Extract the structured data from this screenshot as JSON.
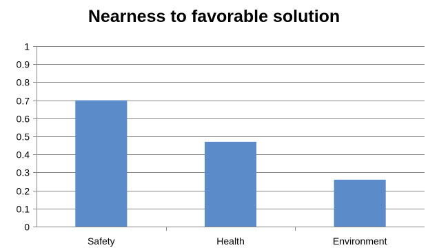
{
  "chart_data": {
    "type": "bar",
    "title": "Nearness to favorable solution",
    "categories": [
      "Safety",
      "Health",
      "Environment"
    ],
    "values": [
      0.7,
      0.47,
      0.26
    ],
    "ylim": [
      0,
      1
    ],
    "yticks": [
      "0",
      "0.1",
      "0.2",
      "0.3",
      "0.4",
      "0.5",
      "0.6",
      "0.7",
      "0.8",
      "0.9",
      "1"
    ],
    "xlabel": "",
    "ylabel": "",
    "grid": true,
    "legend": "none",
    "bar_color": "#5B8BC8",
    "grid_color": "#888888"
  }
}
